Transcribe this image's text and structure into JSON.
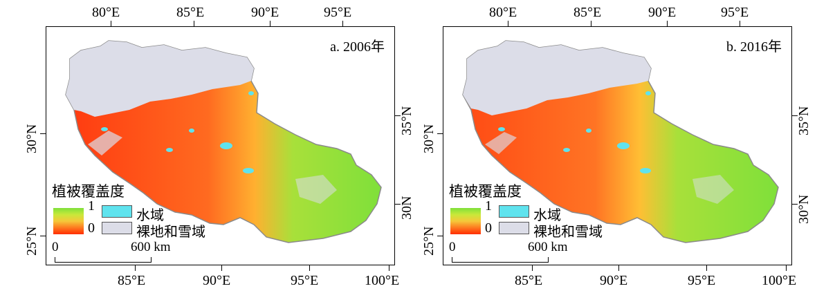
{
  "panels": [
    {
      "title": "a. 2006年",
      "top_ticks": [
        "80°E",
        "85°E",
        "90°E",
        "95°E"
      ],
      "bottom_ticks": [
        "85°E",
        "90°E",
        "95°E",
        "100°E"
      ],
      "left_ticks": [
        "30°N",
        "25°N"
      ],
      "right_ticks": [
        "35°N",
        "30N"
      ]
    },
    {
      "title": "b. 2016年",
      "top_ticks": [
        "80°E",
        "85°E",
        "90°E",
        "95°E"
      ],
      "bottom_ticks": [
        "85°E",
        "90°E",
        "95°E",
        "100°E"
      ],
      "left_ticks": [
        "30°N",
        "25°N"
      ],
      "right_ticks": [
        "35°N",
        "30°N"
      ]
    }
  ],
  "legend": {
    "title": "植被覆盖度",
    "gradient_max": "1",
    "gradient_min": "0",
    "water_label": "水域",
    "bare_snow_label": "裸地和雪域",
    "colors": {
      "high": "#7fe03a",
      "low": "#ff2d00",
      "water": "#5fe3ee",
      "bare_snow": "#dcdde8"
    }
  },
  "scalebar": {
    "start": "0",
    "end": "600 km"
  }
}
